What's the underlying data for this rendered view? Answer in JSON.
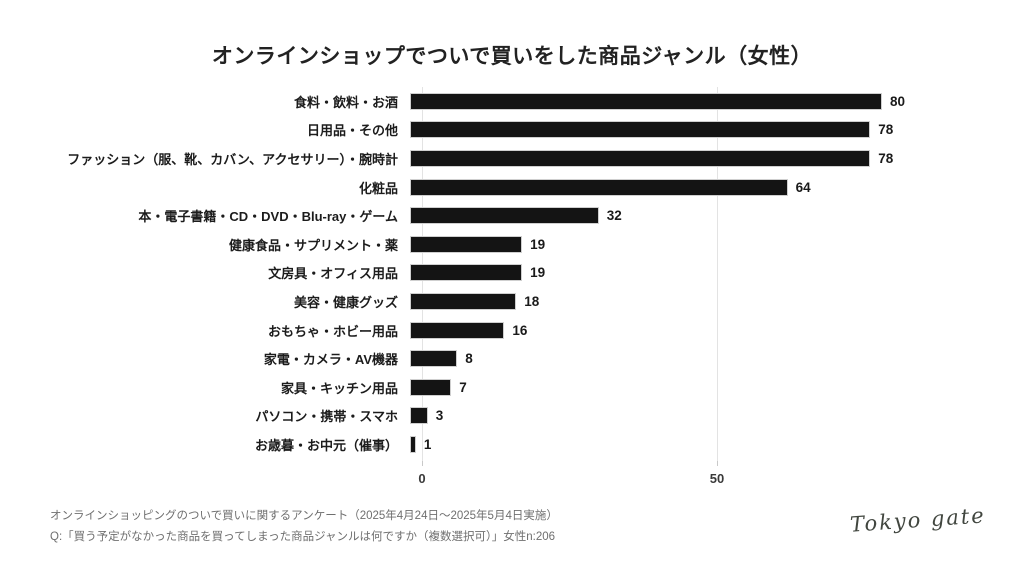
{
  "title": "オンラインショップでついで買いをした商品ジャンル（女性）",
  "chart_data": {
    "type": "bar",
    "orientation": "horizontal",
    "title": "オンラインショップでついで買いをした商品ジャンル（女性）",
    "categories": [
      "食料・飲料・お酒",
      "日用品・その他",
      "ファッション（服、靴、カバン、アクセサリー）・腕時計",
      "化粧品",
      "本・電子書籍・CD・DVD・Blu-ray・ゲーム",
      "健康食品・サプリメント・薬",
      "文房具・オフィス用品",
      "美容・健康グッズ",
      "おもちゃ・ホビー用品",
      "家電・カメラ・AV機器",
      "家具・キッチン用品",
      "パソコン・携帯・スマホ",
      "お歳暮・お中元（催事）"
    ],
    "values": [
      80,
      78,
      78,
      64,
      32,
      19,
      19,
      18,
      16,
      8,
      7,
      3,
      1
    ],
    "xlabel": "",
    "ylabel": "",
    "xlim": [
      0,
      100
    ],
    "x_ticks": [
      0,
      50
    ],
    "grid": "vertical gridlines at x ticks only",
    "legend": "none",
    "data_labels": "at end of each bar"
  },
  "footer": {
    "line1": "オンラインショッピングのついで買いに関するアンケート（2025年4月24日～2025年5月4日実施）",
    "line2": "Q:「買う予定がなかった商品を買ってしまった商品ジャンルは何ですか（複数選択可）」女性n:206"
  },
  "logo": {
    "text": "Tokyo gate"
  },
  "colors": {
    "background": "#ffffff",
    "bar": "#141414",
    "bar_stroke": "#cfcfcf",
    "gridline": "#e3e3e3",
    "title_text": "#222222",
    "label_text": "#1c1c1c",
    "footer_text": "#6f6f6f"
  }
}
